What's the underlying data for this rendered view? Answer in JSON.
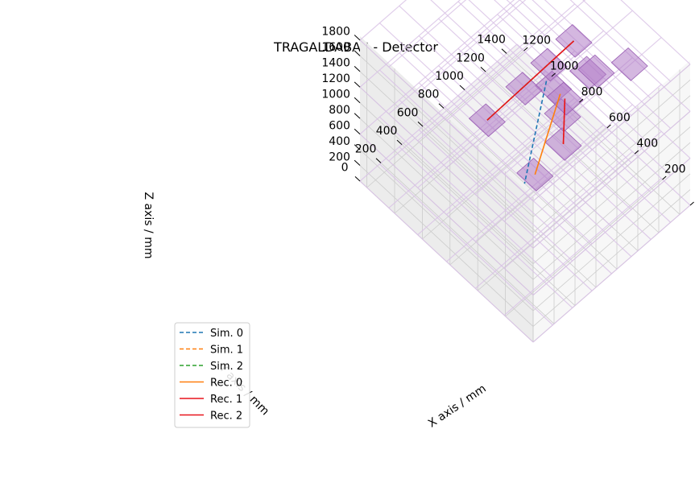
{
  "chart_data": {
    "type": "line",
    "projection": "3d",
    "title": "TRAGALDABAS - Detector",
    "xlabel": "X axis / mm",
    "ylabel": "Y axis / mm",
    "zlabel": "Z axis / mm",
    "xlim": [
      0,
      1500
    ],
    "ylim": [
      0,
      1250
    ],
    "zlim": [
      0,
      1850
    ],
    "xticks": [
      0,
      200,
      400,
      600,
      800,
      1000,
      1200,
      1400
    ],
    "yticks": [
      0,
      200,
      400,
      600,
      800,
      1000,
      1200
    ],
    "zticks": [
      200,
      400,
      600,
      800,
      1000,
      1200,
      1400,
      1600,
      1800
    ],
    "detector_planes_z": [
      0,
      600,
      1200,
      1800
    ],
    "hit_pad_color": "#b07cc6",
    "grid": true,
    "legend_position": "lower left",
    "series": [
      {
        "name": "Sim. 0",
        "style": "dashed",
        "color": "#1f77b4",
        "points": [
          [
            1450,
            1000,
            0
          ],
          [
            50,
            100,
            1800
          ]
        ]
      },
      {
        "name": "Sim. 1",
        "style": "dashed",
        "color": "#ff7f0e",
        "points": [
          [
            950,
            500,
            600
          ],
          [
            700,
            300,
            1800
          ]
        ]
      },
      {
        "name": "Sim. 2",
        "style": "dashed",
        "color": "#2ca02c",
        "points": [
          [
            950,
            1050,
            0
          ],
          [
            1050,
            500,
            1800
          ]
        ]
      },
      {
        "name": "Rec. 0",
        "style": "solid",
        "color": "#ff7f0e",
        "points": [
          [
            1450,
            900,
            0
          ],
          [
            150,
            100,
            1800
          ]
        ]
      },
      {
        "name": "Rec. 1",
        "style": "solid",
        "color": "#e8141c",
        "points": [
          [
            950,
            500,
            600
          ],
          [
            700,
            300,
            1800
          ]
        ]
      },
      {
        "name": "Rec. 2",
        "style": "solid",
        "color": "#e8141c",
        "points": [
          [
            950,
            1050,
            0
          ],
          [
            1050,
            500,
            1800
          ]
        ]
      }
    ],
    "hits": [
      [
        1450,
        950,
        0
      ],
      [
        1450,
        700,
        600
      ],
      [
        1450,
        400,
        1200
      ],
      [
        150,
        100,
        1800
      ],
      [
        950,
        500,
        600
      ],
      [
        850,
        430,
        1200
      ],
      [
        700,
        300,
        1800
      ],
      [
        950,
        1050,
        0
      ],
      [
        1050,
        860,
        600
      ],
      [
        1050,
        680,
        1200
      ],
      [
        1050,
        500,
        1800
      ],
      [
        1000,
        300,
        1800
      ]
    ]
  }
}
